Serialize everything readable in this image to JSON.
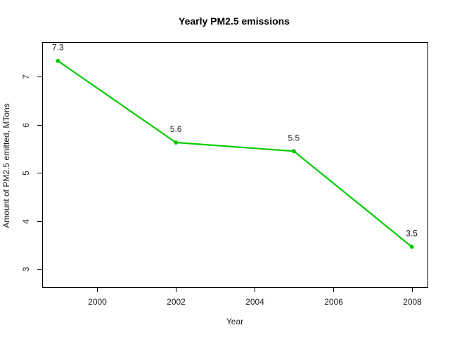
{
  "chart_data": {
    "type": "line",
    "title": "Yearly PM2.5 emissions",
    "xlabel": "Year",
    "ylabel": "Amount of PM2.5 emitted, MTons",
    "x": [
      1999,
      2002,
      2005,
      2008
    ],
    "series": [
      {
        "values": [
          7.33,
          5.63,
          5.45,
          3.46
        ],
        "labels": [
          "7.3",
          "5.6",
          "5.5",
          "3.5"
        ]
      }
    ],
    "xticks": [
      2000,
      2002,
      2004,
      2006,
      2008
    ],
    "yticks": [
      3,
      4,
      5,
      6,
      7
    ],
    "xlim": [
      1998.6,
      2008.4
    ],
    "ylim": [
      2.62,
      7.72
    ],
    "grid": false,
    "legend": "none",
    "color": "#00cc00"
  }
}
